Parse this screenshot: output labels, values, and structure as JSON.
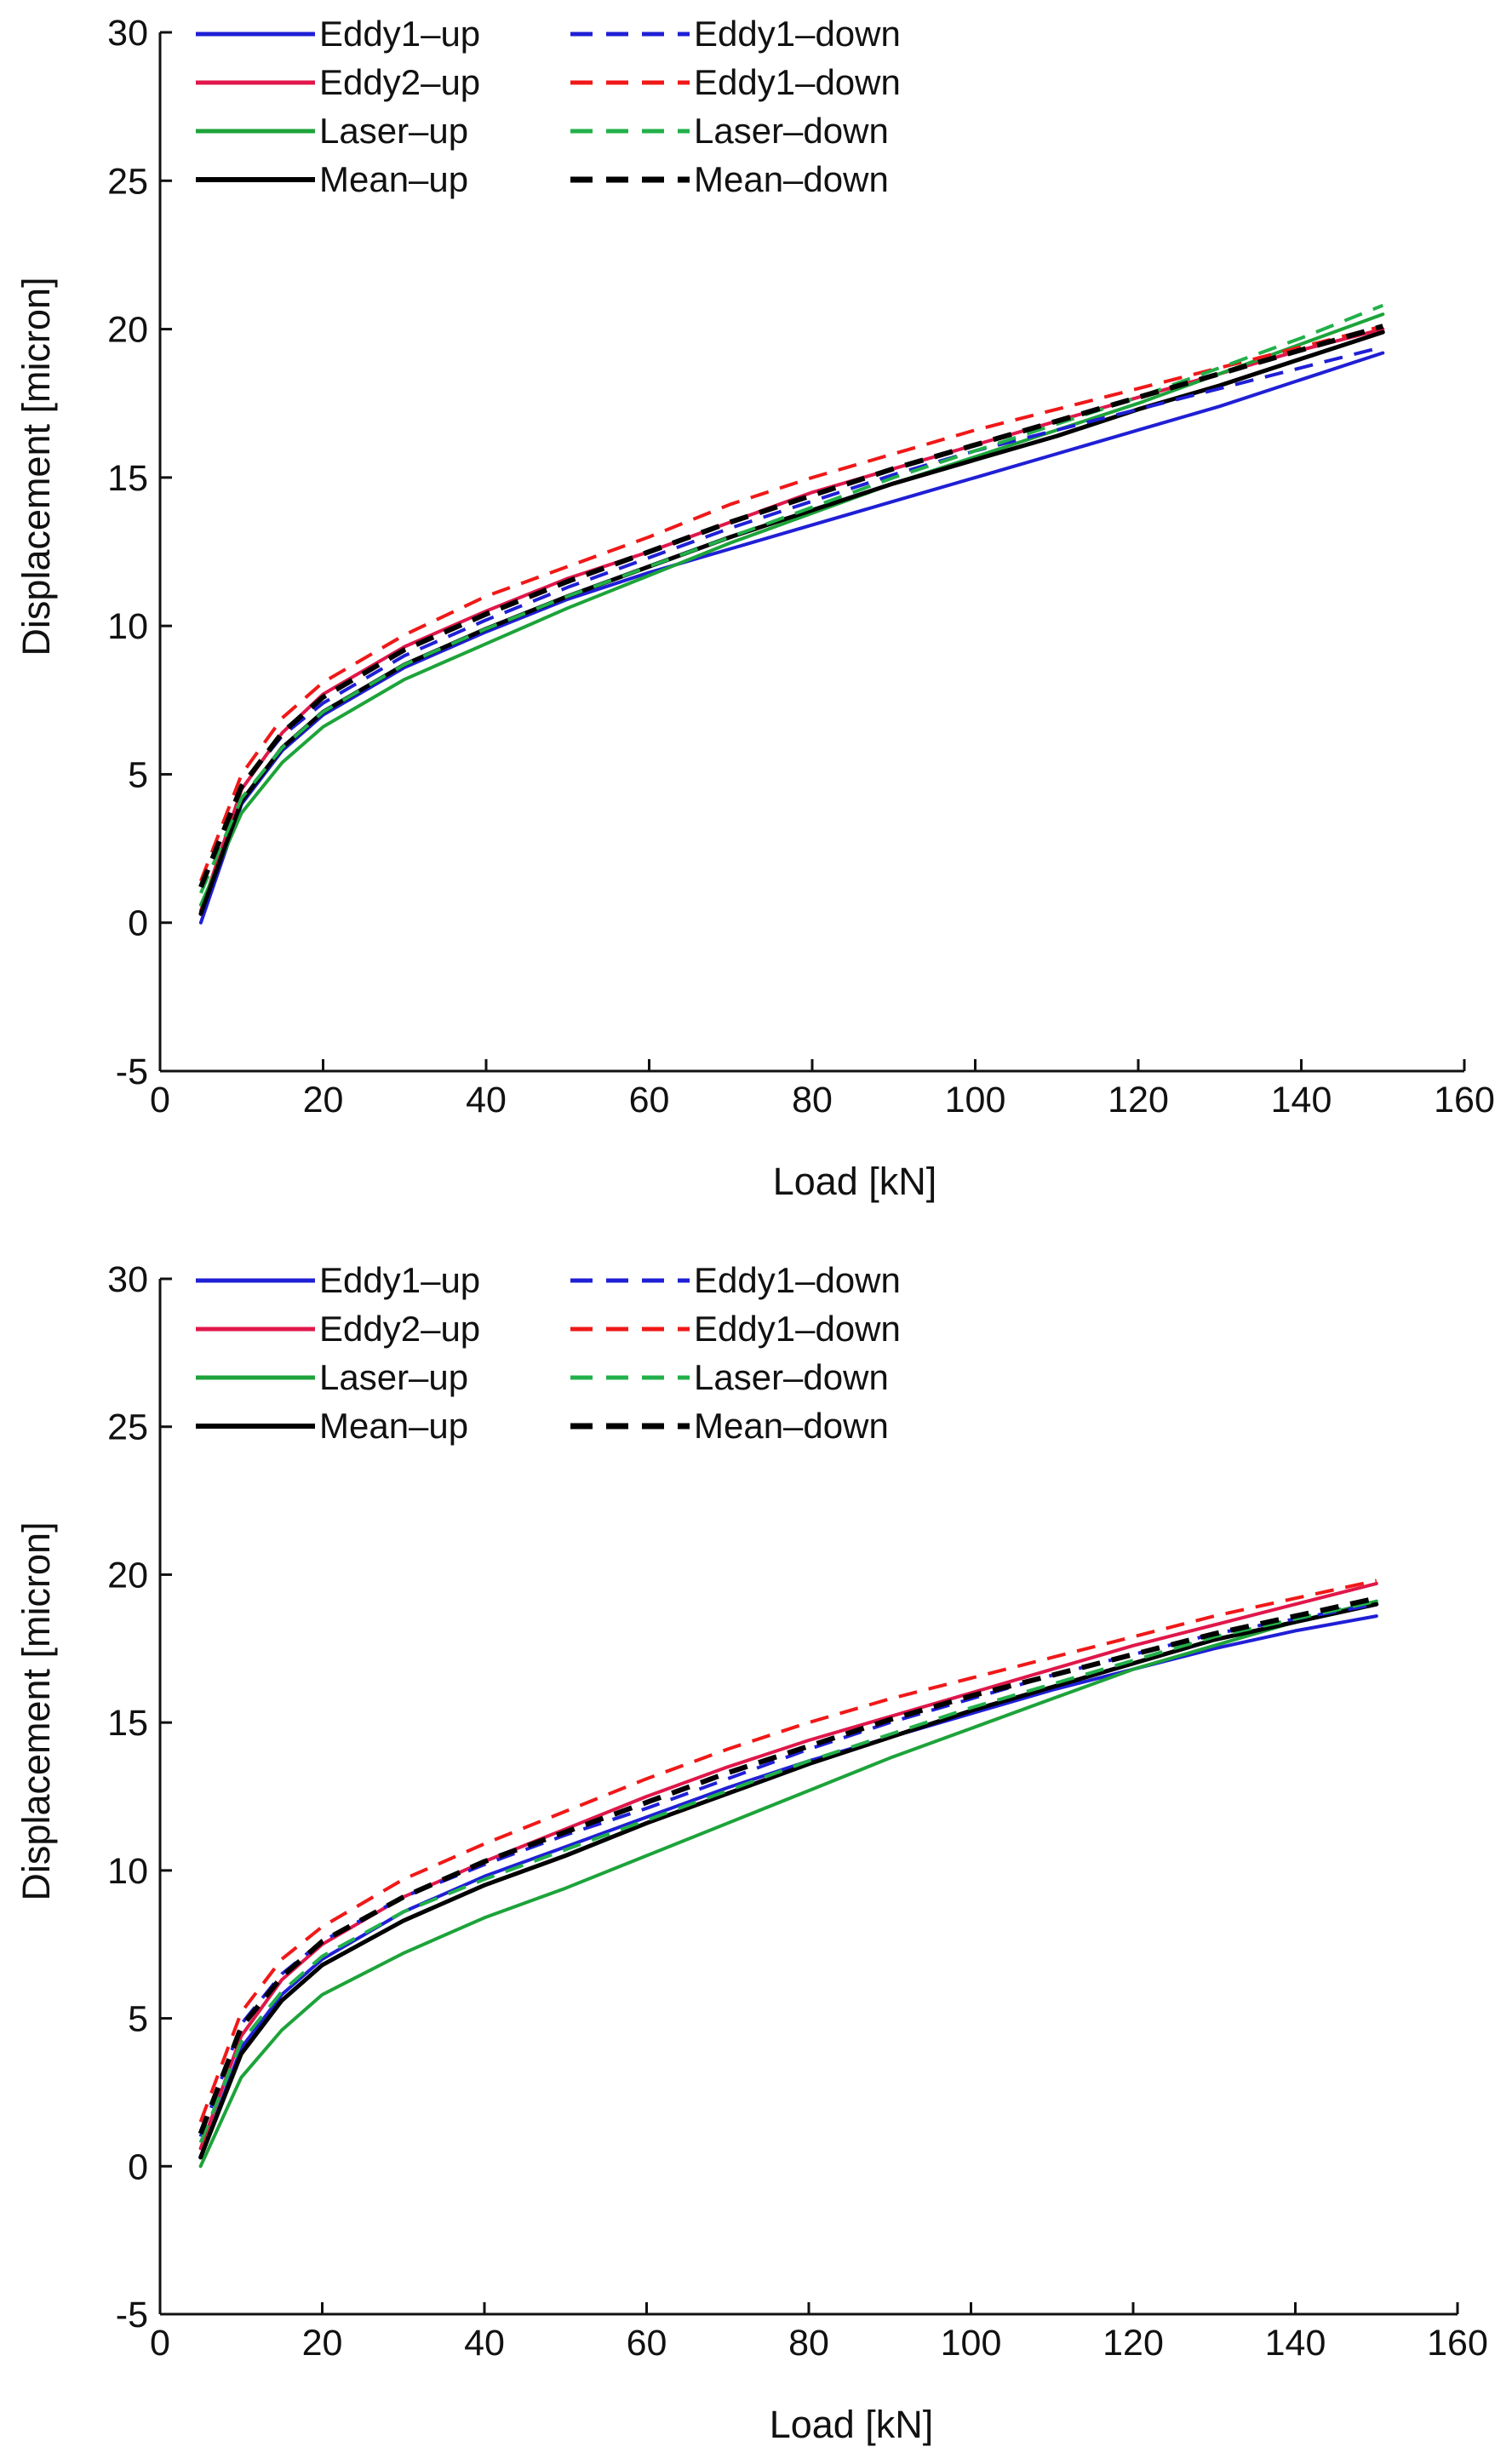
{
  "chart_data": [
    {
      "type": "line",
      "title": "",
      "xlabel": "Load [kN]",
      "ylabel": "Displacement [micron]",
      "xlim": [
        0,
        160
      ],
      "ylim": [
        -5,
        30
      ],
      "xticks": [
        0,
        20,
        40,
        60,
        80,
        100,
        120,
        140,
        160
      ],
      "yticks": [
        -5,
        0,
        5,
        10,
        15,
        20,
        25,
        30
      ],
      "legend_position": "top-left",
      "x": [
        5,
        10,
        15,
        20,
        30,
        40,
        50,
        60,
        70,
        80,
        90,
        100,
        110,
        120,
        130,
        140,
        150
      ],
      "series": [
        {
          "name": "Eddy1–up",
          "color": "#1f1fd6",
          "dash": "solid",
          "width": 4,
          "values": [
            0.0,
            4.0,
            5.8,
            7.0,
            8.6,
            9.8,
            10.9,
            11.8,
            12.6,
            13.4,
            14.2,
            15.0,
            15.8,
            16.6,
            17.4,
            18.3,
            19.2
          ]
        },
        {
          "name": "Eddy2–up",
          "color": "#e0174a",
          "dash": "solid",
          "width": 4,
          "values": [
            0.4,
            4.5,
            6.4,
            7.7,
            9.3,
            10.5,
            11.6,
            12.5,
            13.5,
            14.5,
            15.3,
            16.1,
            16.9,
            17.7,
            18.5,
            19.3,
            20.0
          ]
        },
        {
          "name": "Laser–up",
          "color": "#1da33a",
          "dash": "solid",
          "width": 4,
          "values": [
            0.6,
            3.7,
            5.4,
            6.6,
            8.2,
            9.4,
            10.6,
            11.7,
            12.8,
            13.8,
            14.8,
            15.7,
            16.6,
            17.5,
            18.5,
            19.5,
            20.5
          ]
        },
        {
          "name": "Mean–up",
          "color": "#000000",
          "dash": "solid",
          "width": 5,
          "values": [
            0.3,
            4.1,
            5.9,
            7.1,
            8.7,
            9.9,
            11.0,
            12.0,
            13.0,
            13.9,
            14.8,
            15.6,
            16.4,
            17.3,
            18.1,
            19.0,
            19.9
          ]
        },
        {
          "name": "Eddy1–down",
          "color": "#1f1fd6",
          "dash": "dashed",
          "width": 4,
          "values": [
            1.2,
            4.6,
            6.3,
            7.4,
            9.0,
            10.2,
            11.3,
            12.3,
            13.3,
            14.2,
            15.1,
            15.9,
            16.6,
            17.3,
            18.0,
            18.7,
            19.4
          ]
        },
        {
          "name": "Eddy1–down",
          "color": "#f01818",
          "dash": "dashed",
          "width": 4,
          "values": [
            1.4,
            5.0,
            6.9,
            8.1,
            9.7,
            11.0,
            12.0,
            13.0,
            14.1,
            15.0,
            15.8,
            16.6,
            17.3,
            18.0,
            18.7,
            19.4,
            20.1
          ]
        },
        {
          "name": "Laser–down",
          "color": "#22b04a",
          "dash": "dashed",
          "width": 4,
          "values": [
            1.0,
            4.2,
            5.9,
            7.1,
            8.7,
            9.9,
            11.0,
            12.0,
            13.0,
            14.0,
            15.0,
            15.9,
            16.8,
            17.7,
            18.7,
            19.7,
            20.8
          ]
        },
        {
          "name": "Mean–down",
          "color": "#000000",
          "dash": "dashed",
          "width": 6,
          "values": [
            1.2,
            4.6,
            6.4,
            7.6,
            9.2,
            10.4,
            11.5,
            12.5,
            13.5,
            14.4,
            15.3,
            16.1,
            16.9,
            17.7,
            18.5,
            19.3,
            20.1
          ]
        }
      ]
    },
    {
      "type": "line",
      "title": "",
      "xlabel": "Load [kN]",
      "ylabel": "Displacement [micron]",
      "xlim": [
        0,
        160
      ],
      "ylim": [
        -5,
        30
      ],
      "xticks": [
        0,
        20,
        40,
        60,
        80,
        100,
        120,
        140,
        160
      ],
      "yticks": [
        -5,
        0,
        5,
        10,
        15,
        20,
        25,
        30
      ],
      "legend_position": "top-left",
      "x": [
        5,
        10,
        15,
        20,
        30,
        40,
        50,
        60,
        70,
        80,
        90,
        100,
        110,
        120,
        130,
        140,
        150
      ],
      "series": [
        {
          "name": "Eddy1–up",
          "color": "#1f1fd6",
          "dash": "solid",
          "width": 4,
          "values": [
            0.3,
            4.0,
            5.8,
            7.0,
            8.6,
            9.8,
            10.8,
            11.8,
            12.8,
            13.7,
            14.5,
            15.3,
            16.1,
            16.8,
            17.5,
            18.1,
            18.6
          ]
        },
        {
          "name": "Eddy2–up",
          "color": "#e0174a",
          "dash": "solid",
          "width": 4,
          "values": [
            0.6,
            4.4,
            6.3,
            7.5,
            9.1,
            10.3,
            11.4,
            12.5,
            13.5,
            14.4,
            15.2,
            16.0,
            16.8,
            17.6,
            18.3,
            19.0,
            19.7
          ]
        },
        {
          "name": "Laser–up",
          "color": "#1da33a",
          "dash": "solid",
          "width": 4,
          "values": [
            0.0,
            3.0,
            4.6,
            5.8,
            7.2,
            8.4,
            9.4,
            10.5,
            11.6,
            12.7,
            13.8,
            14.8,
            15.8,
            16.8,
            17.6,
            18.4,
            19.1
          ]
        },
        {
          "name": "Mean–up",
          "color": "#000000",
          "dash": "solid",
          "width": 5,
          "values": [
            0.3,
            3.8,
            5.6,
            6.8,
            8.3,
            9.5,
            10.5,
            11.6,
            12.6,
            13.6,
            14.5,
            15.4,
            16.2,
            17.0,
            17.8,
            18.4,
            19.0
          ]
        },
        {
          "name": "Eddy1–down",
          "color": "#1f1fd6",
          "dash": "dashed",
          "width": 4,
          "values": [
            1.0,
            4.8,
            6.5,
            7.6,
            9.1,
            10.2,
            11.2,
            12.1,
            13.1,
            14.1,
            15.0,
            15.8,
            16.6,
            17.3,
            18.0,
            18.5,
            19.0
          ]
        },
        {
          "name": "Eddy1–down",
          "color": "#f01818",
          "dash": "dashed",
          "width": 4,
          "values": [
            1.5,
            5.2,
            7.0,
            8.1,
            9.7,
            10.9,
            12.0,
            13.1,
            14.1,
            15.0,
            15.8,
            16.5,
            17.2,
            17.9,
            18.6,
            19.2,
            19.8
          ]
        },
        {
          "name": "Laser–down",
          "color": "#22b04a",
          "dash": "dashed",
          "width": 4,
          "values": [
            0.8,
            4.2,
            5.9,
            7.1,
            8.6,
            9.7,
            10.7,
            11.7,
            12.7,
            13.7,
            14.6,
            15.5,
            16.3,
            17.1,
            17.9,
            18.5,
            19.1
          ]
        },
        {
          "name": "Mean–down",
          "color": "#000000",
          "dash": "dashed",
          "width": 6,
          "values": [
            1.1,
            4.7,
            6.4,
            7.6,
            9.1,
            10.3,
            11.3,
            12.3,
            13.3,
            14.2,
            15.1,
            15.9,
            16.6,
            17.3,
            18.0,
            18.6,
            19.2
          ]
        }
      ]
    }
  ]
}
